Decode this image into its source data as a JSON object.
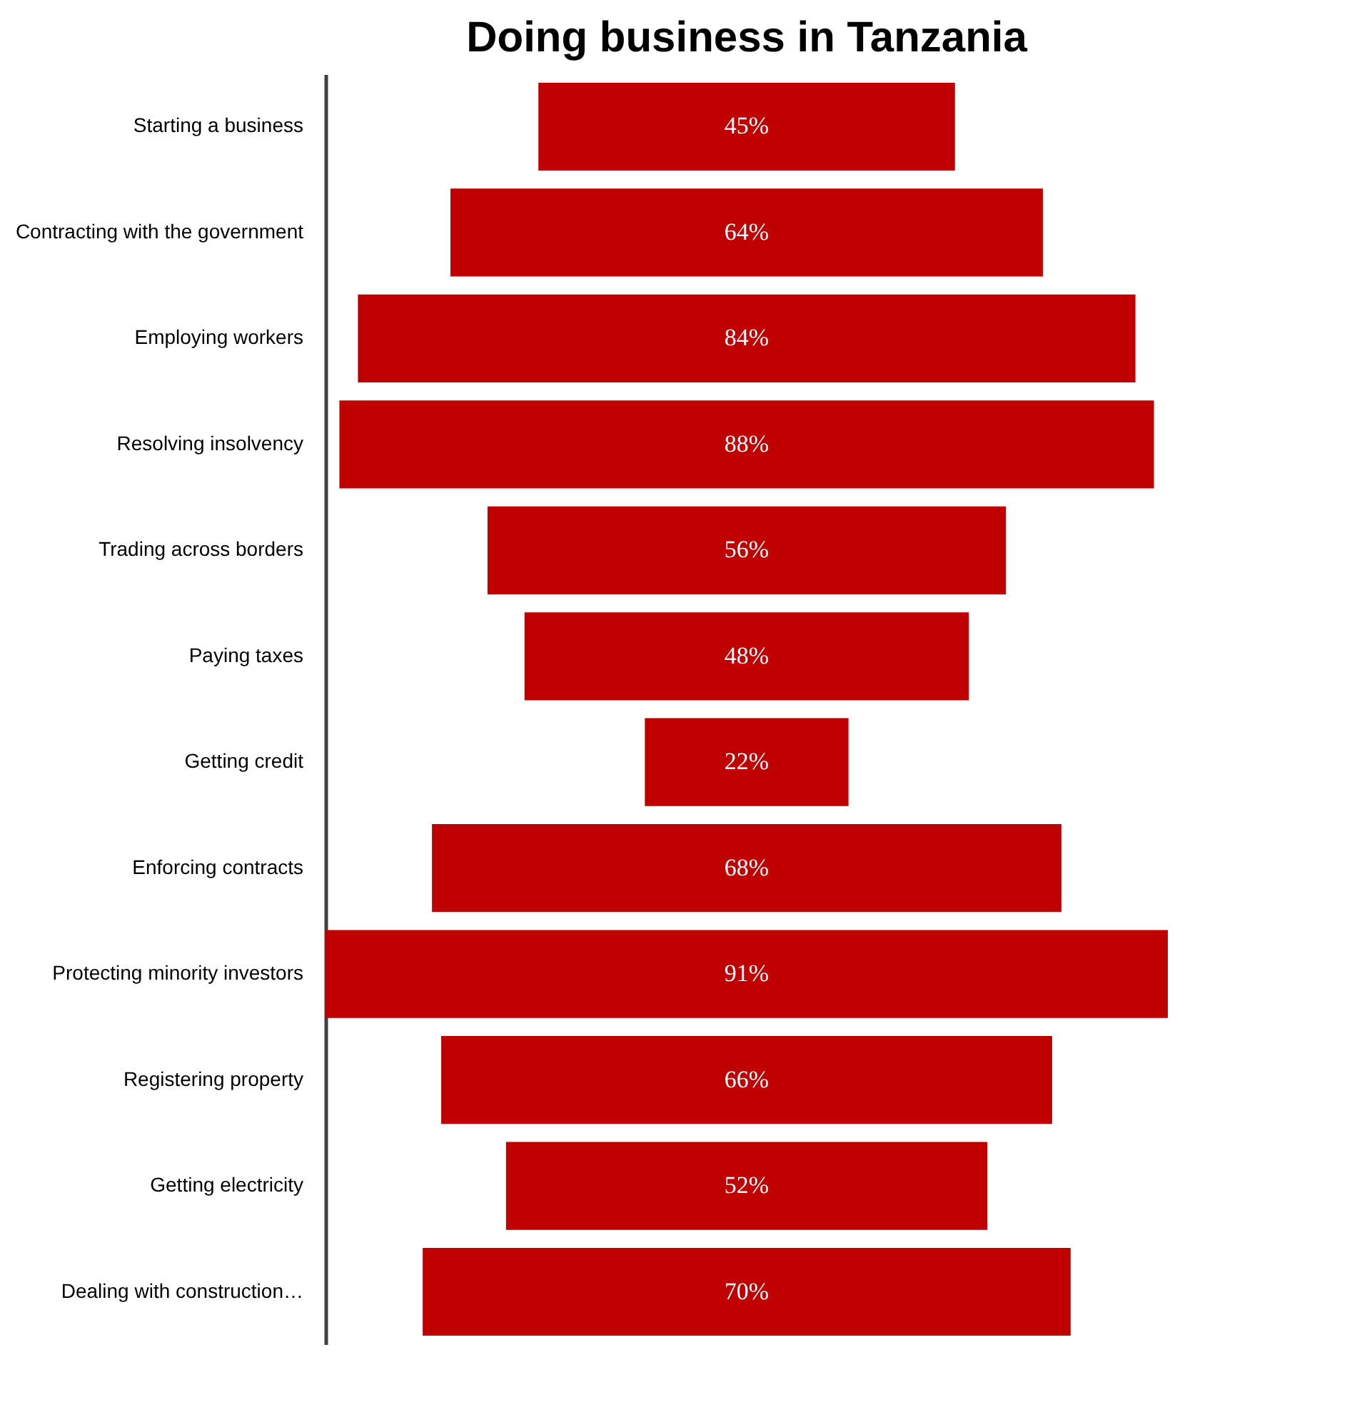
{
  "chart_data": {
    "type": "other",
    "title": "Doing business in Tanzania",
    "categories": [
      "Starting a business",
      "Contracting with the government",
      "Employing workers",
      "Resolving insolvency",
      "Trading across borders",
      "Paying taxes",
      "Getting credit",
      "Enforcing contracts",
      "Protecting minority investors",
      "Registering property",
      "Getting electricity",
      "Dealing with construction…"
    ],
    "values": [
      45,
      64,
      84,
      88,
      56,
      48,
      22,
      68,
      91,
      66,
      52,
      70
    ],
    "value_labels": [
      "45%",
      "64%",
      "84%",
      "88%",
      "56%",
      "48%",
      "22%",
      "68%",
      "91%",
      "66%",
      "52%",
      "70%"
    ],
    "color": "#c00000"
  }
}
